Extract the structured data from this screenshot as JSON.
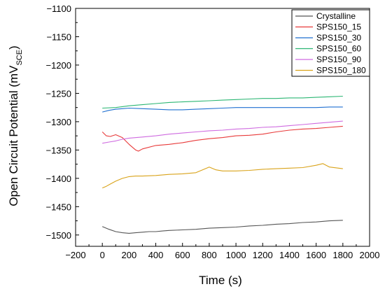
{
  "chart_data": {
    "type": "line",
    "xlabel": "Time (s)",
    "ylabel": "Open Circuit Potential (mV",
    "ylabel_sub": "SCE",
    "ylabel_close": ")",
    "xlim": [
      -200,
      2000
    ],
    "ylim": [
      -1520,
      -1100
    ],
    "x_ticks": [
      -200,
      0,
      200,
      400,
      600,
      800,
      1000,
      1200,
      1400,
      1600,
      1800,
      2000
    ],
    "y_ticks": [
      -1500,
      -1450,
      -1400,
      -1350,
      -1300,
      -1250,
      -1200,
      -1150,
      -1100
    ],
    "x_tick_labels": [
      "−200",
      "0",
      "200",
      "400",
      "600",
      "800",
      "1000",
      "1200",
      "1400",
      "1600",
      "1800",
      "2000"
    ],
    "y_tick_labels": [
      "−1500",
      "−1450",
      "−1400",
      "−1350",
      "−1300",
      "−1250",
      "−1200",
      "−1150",
      "−1100"
    ],
    "grid": false,
    "legend_position": "top-right",
    "series": [
      {
        "name": "Crystalline",
        "color": "#555555",
        "x": [
          0,
          50,
          100,
          150,
          200,
          250,
          300,
          350,
          400,
          450,
          500,
          600,
          700,
          800,
          900,
          1000,
          1100,
          1200,
          1300,
          1400,
          1500,
          1600,
          1700,
          1800
        ],
        "y": [
          -1485,
          -1490,
          -1494,
          -1496,
          -1497,
          -1496,
          -1495,
          -1494,
          -1494,
          -1493,
          -1492,
          -1491,
          -1490,
          -1488,
          -1487,
          -1486,
          -1484,
          -1483,
          -1481,
          -1480,
          -1478,
          -1477,
          -1475,
          -1474
        ]
      },
      {
        "name": "SPS150_15",
        "color": "#e83a3a",
        "x": [
          0,
          30,
          60,
          100,
          150,
          200,
          250,
          270,
          300,
          400,
          500,
          600,
          700,
          800,
          900,
          1000,
          1100,
          1200,
          1300,
          1400,
          1500,
          1600,
          1700,
          1800
        ],
        "y": [
          -1318,
          -1325,
          -1326,
          -1323,
          -1328,
          -1340,
          -1350,
          -1352,
          -1348,
          -1342,
          -1340,
          -1337,
          -1333,
          -1330,
          -1328,
          -1325,
          -1324,
          -1322,
          -1318,
          -1315,
          -1313,
          -1312,
          -1310,
          -1308
        ]
      },
      {
        "name": "SPS150_30",
        "color": "#1f6fd1",
        "x": [
          0,
          50,
          100,
          150,
          200,
          300,
          400,
          500,
          600,
          700,
          800,
          900,
          1000,
          1100,
          1200,
          1300,
          1400,
          1500,
          1600,
          1700,
          1800
        ],
        "y": [
          -1283,
          -1280,
          -1278,
          -1277,
          -1276,
          -1277,
          -1278,
          -1279,
          -1279,
          -1278,
          -1277,
          -1276,
          -1275,
          -1275,
          -1275,
          -1275,
          -1275,
          -1275,
          -1275,
          -1274,
          -1274
        ]
      },
      {
        "name": "SPS150_60",
        "color": "#2bb673",
        "x": [
          0,
          100,
          200,
          300,
          400,
          500,
          600,
          700,
          800,
          900,
          1000,
          1100,
          1200,
          1300,
          1400,
          1500,
          1600,
          1700,
          1800
        ],
        "y": [
          -1276,
          -1275,
          -1272,
          -1270,
          -1268,
          -1266,
          -1265,
          -1264,
          -1263,
          -1262,
          -1261,
          -1260,
          -1259,
          -1259,
          -1258,
          -1258,
          -1257,
          -1256,
          -1255
        ]
      },
      {
        "name": "SPS150_90",
        "color": "#cf6be0",
        "x": [
          0,
          50,
          100,
          150,
          200,
          300,
          400,
          500,
          600,
          700,
          800,
          900,
          1000,
          1100,
          1200,
          1300,
          1400,
          1500,
          1600,
          1700,
          1800
        ],
        "y": [
          -1338,
          -1336,
          -1334,
          -1331,
          -1329,
          -1327,
          -1325,
          -1322,
          -1320,
          -1318,
          -1316,
          -1315,
          -1313,
          -1312,
          -1310,
          -1309,
          -1307,
          -1305,
          -1303,
          -1301,
          -1299
        ]
      },
      {
        "name": "SPS150_180",
        "color": "#d9a31a",
        "x": [
          0,
          30,
          60,
          100,
          150,
          200,
          250,
          300,
          400,
          500,
          600,
          700,
          800,
          850,
          900,
          1000,
          1100,
          1200,
          1300,
          1400,
          1500,
          1600,
          1650,
          1700,
          1800
        ],
        "y": [
          -1417,
          -1414,
          -1410,
          -1405,
          -1400,
          -1397,
          -1396,
          -1396,
          -1395,
          -1393,
          -1392,
          -1390,
          -1380,
          -1385,
          -1387,
          -1387,
          -1386,
          -1384,
          -1383,
          -1382,
          -1381,
          -1377,
          -1374,
          -1380,
          -1383
        ]
      }
    ]
  }
}
